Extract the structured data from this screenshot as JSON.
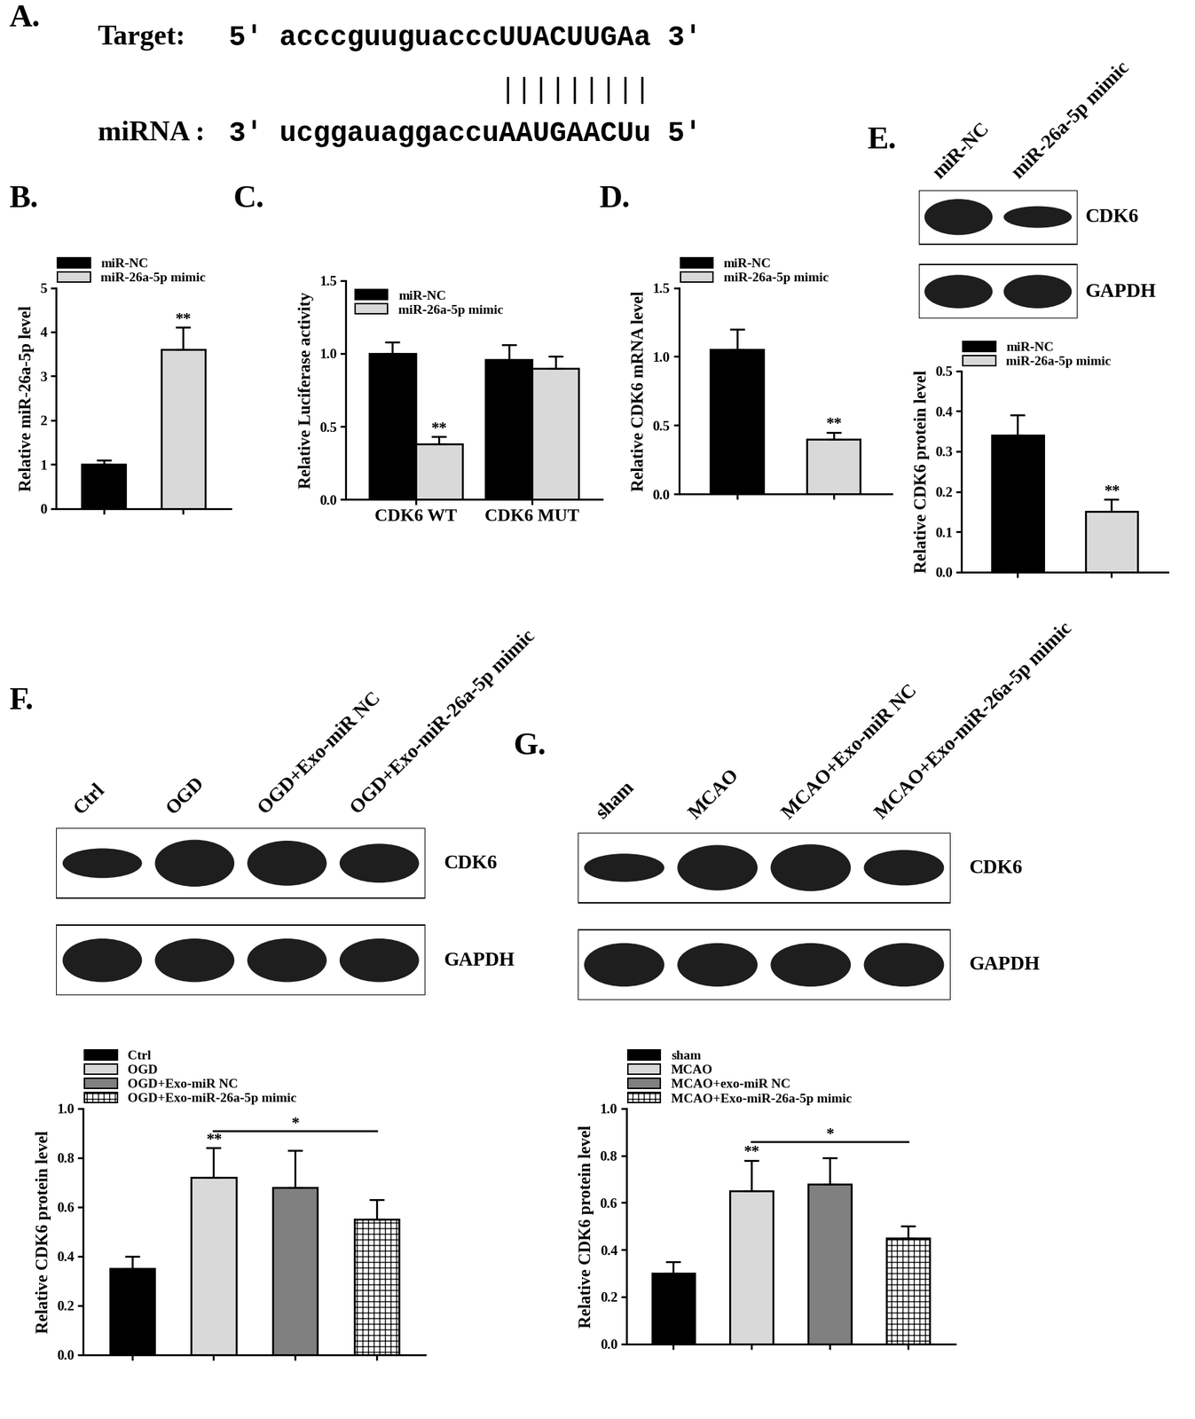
{
  "alignment": {
    "panel": "A.",
    "target_label": "Target:",
    "target": "5' acccguuguacccUUACUUGAa 3'",
    "pairs": "|||||||||",
    "mirna_label": "miRNA :",
    "mirna": "3' ucggauaggaccuAAUGAACUu 5'"
  },
  "blots": [
    {
      "panel": "E.",
      "lanes": [
        "miR-NC",
        "miR-26a-5p mimic"
      ],
      "rows": [
        "CDK6",
        "GAPDH"
      ]
    },
    {
      "panel": "F.",
      "lanes": [
        "Ctrl",
        "OGD",
        "OGD+Exo-miR NC",
        "OGD+Exo-miR-26a-5p mimic"
      ],
      "rows": [
        "CDK6",
        "GAPDH"
      ]
    },
    {
      "panel": "G.",
      "lanes": [
        "sham",
        "MCAO",
        "MCAO+Exo-miR NC",
        "MCAO+Exo-miR-26a-5p mimic"
      ],
      "rows": [
        "CDK6",
        "GAPDH"
      ]
    }
  ],
  "chart_data": [
    {
      "panel": "B.",
      "type": "bar",
      "categories": [
        null
      ],
      "ylabel": "Relative miR-26a-5p level",
      "ylim": [
        0,
        5
      ],
      "yticks": [
        0,
        1,
        2,
        3,
        4,
        5
      ],
      "legend": "above",
      "series": [
        {
          "name": "miR-NC",
          "color": "#000000",
          "values": [
            1.0
          ],
          "errors": [
            0.1
          ]
        },
        {
          "name": "miR-26a-5p mimic",
          "color": "#d9d9d9",
          "values": [
            3.6
          ],
          "errors": [
            0.5
          ]
        }
      ],
      "annotations": [
        {
          "text": "**",
          "series": 1,
          "category": 0
        }
      ]
    },
    {
      "panel": "C.",
      "type": "bar",
      "categories": [
        "CDK6 WT",
        "CDK6 MUT"
      ],
      "ylabel": "Relative Luciferase activity",
      "ylim": [
        0,
        1.5
      ],
      "yticks": [
        {
          "value": 0,
          "label": "0.0"
        },
        {
          "value": 0.5,
          "label": "0.5"
        },
        {
          "value": 1.0,
          "label": "1.0"
        },
        {
          "value": 1.5,
          "label": "1.5"
        }
      ],
      "legend": "upper left",
      "series": [
        {
          "name": "miR-NC",
          "color": "#000000",
          "values": [
            1.0,
            0.96
          ],
          "errors": [
            0.08,
            0.1
          ]
        },
        {
          "name": "miR-26a-5p mimic",
          "color": "#d9d9d9",
          "values": [
            0.38,
            0.9
          ],
          "errors": [
            0.05,
            0.08
          ]
        }
      ],
      "annotations": [
        {
          "text": "**",
          "series": 1,
          "category": 0
        }
      ]
    },
    {
      "panel": "D.",
      "type": "bar",
      "categories": [
        null
      ],
      "ylabel": "Relative CDK6 mRNA level",
      "ylim": [
        0,
        1.5
      ],
      "yticks": [
        {
          "value": 0,
          "label": "0.0"
        },
        {
          "value": 0.5,
          "label": "0.5"
        },
        {
          "value": 1.0,
          "label": "1.0"
        },
        {
          "value": 1.5,
          "label": "1.5"
        }
      ],
      "legend": "above",
      "series": [
        {
          "name": "miR-NC",
          "color": "#000000",
          "values": [
            1.05
          ],
          "errors": [
            0.15
          ]
        },
        {
          "name": "miR-26a-5p mimic",
          "color": "#d9d9d9",
          "values": [
            0.4
          ],
          "errors": [
            0.05
          ]
        }
      ],
      "annotations": [
        {
          "text": "**",
          "series": 1,
          "category": 0
        }
      ]
    },
    {
      "type": "bar",
      "categories": [
        null
      ],
      "ylabel": "Relative CDK6 protein level",
      "ylim": [
        0,
        0.5
      ],
      "yticks": [
        {
          "value": 0,
          "label": "0.0"
        },
        {
          "value": 0.1,
          "label": "0.1"
        },
        {
          "value": 0.2,
          "label": "0.2"
        },
        {
          "value": 0.3,
          "label": "0.3"
        },
        {
          "value": 0.4,
          "label": "0.4"
        },
        {
          "value": 0.5,
          "label": "0.5"
        }
      ],
      "legend": "above",
      "series": [
        {
          "name": "miR-NC",
          "color": "#000000",
          "values": [
            0.34
          ],
          "errors": [
            0.05
          ]
        },
        {
          "name": "miR-26a-5p mimic",
          "color": "#d9d9d9",
          "values": [
            0.15
          ],
          "errors": [
            0.03
          ]
        }
      ],
      "annotations": [
        {
          "text": "**",
          "series": 1,
          "category": 0
        }
      ]
    },
    {
      "type": "bar",
      "categories": [
        null
      ],
      "ylabel": "Relative CDK6 protein level",
      "ylim": [
        0,
        1.0
      ],
      "yticks": [
        {
          "value": 0,
          "label": "0.0"
        },
        {
          "value": 0.2,
          "label": "0.2"
        },
        {
          "value": 0.4,
          "label": "0.4"
        },
        {
          "value": 0.6,
          "label": "0.6"
        },
        {
          "value": 0.8,
          "label": "0.8"
        },
        {
          "value": 1.0,
          "label": "1.0"
        }
      ],
      "legend": "above",
      "series": [
        {
          "name": "Ctrl",
          "color": "#000000",
          "values": [
            0.35
          ],
          "errors": [
            0.05
          ]
        },
        {
          "name": "OGD",
          "color": "#d9d9d9",
          "values": [
            0.72
          ],
          "errors": [
            0.12
          ]
        },
        {
          "name": "OGD+Exo-miR NC",
          "color": "#808080",
          "values": [
            0.68
          ],
          "errors": [
            0.15
          ]
        },
        {
          "name": "OGD+Exo-miR-26a-5p mimic",
          "color": "#ffffff",
          "values": [
            0.55
          ],
          "errors": [
            0.08
          ]
        }
      ],
      "annotations": [
        {
          "text": "**",
          "series": 1,
          "category": 0
        },
        {
          "text": "*",
          "series": [
            1,
            3
          ],
          "category": 0
        }
      ]
    },
    {
      "type": "bar",
      "categories": [
        null
      ],
      "ylabel": "Relative CDK6 protein level",
      "ylim": [
        0,
        1.0
      ],
      "yticks": [
        {
          "value": 0,
          "label": "0.0"
        },
        {
          "value": 0.2,
          "label": "0.2"
        },
        {
          "value": 0.4,
          "label": "0.4"
        },
        {
          "value": 0.6,
          "label": "0.6"
        },
        {
          "value": 0.8,
          "label": "0.8"
        },
        {
          "value": 1.0,
          "label": "1.0"
        }
      ],
      "legend": "above",
      "series": [
        {
          "name": "sham",
          "color": "#000000",
          "values": [
            0.3
          ],
          "errors": [
            0.05
          ]
        },
        {
          "name": "MCAO",
          "color": "#d9d9d9",
          "values": [
            0.65
          ],
          "errors": [
            0.13
          ]
        },
        {
          "name": "MCAO+exo-miR NC",
          "color": "#808080",
          "values": [
            0.68
          ],
          "errors": [
            0.11
          ]
        },
        {
          "name": "MCAO+Exo-miR-26a-5p mimic",
          "color": "#ffffff",
          "values": [
            0.45
          ],
          "errors": [
            0.05
          ]
        }
      ],
      "annotations": [
        {
          "text": "**",
          "series": 1,
          "category": 0
        },
        {
          "text": "*",
          "series": [
            1,
            3
          ],
          "category": 0
        }
      ]
    }
  ]
}
